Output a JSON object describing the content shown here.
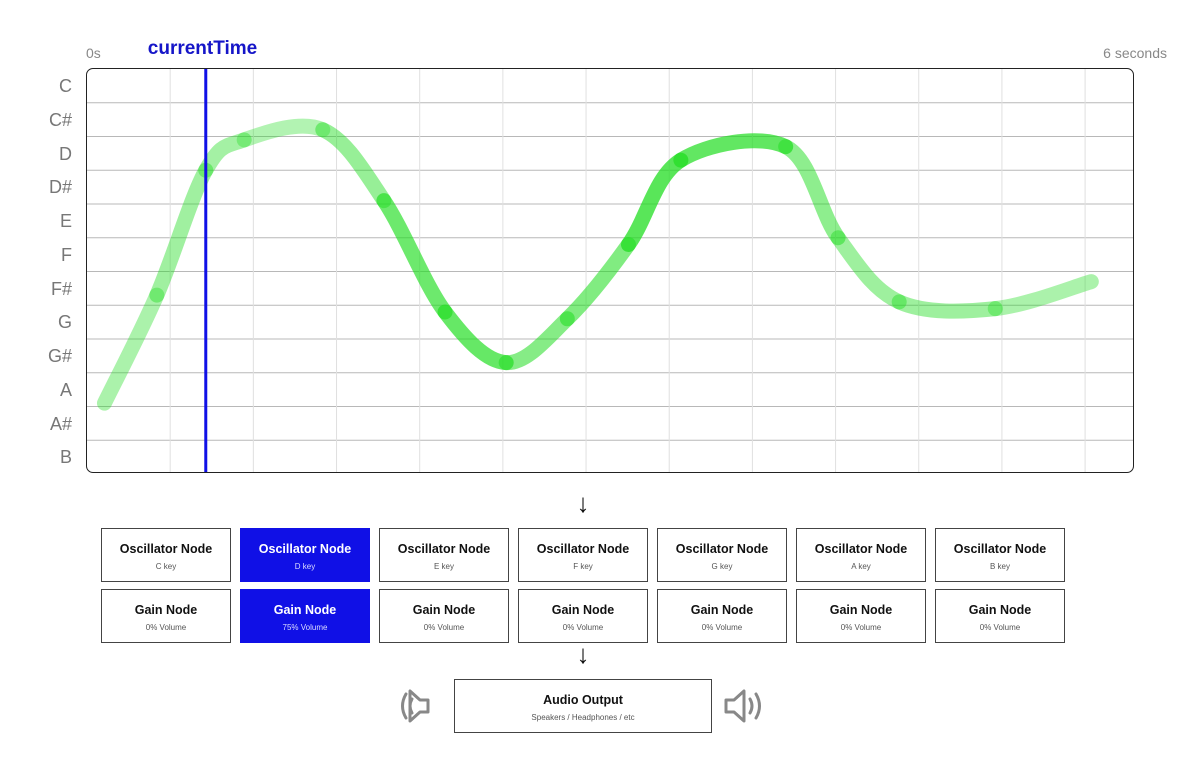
{
  "timeline": {
    "start_label": "0s",
    "end_label": "6 seconds",
    "current_time_label": "currentTime",
    "accent_color": "#1010e6",
    "curve_color": "#22dd22"
  },
  "notes": [
    "C",
    "C#",
    "D",
    "D#",
    "E",
    "F",
    "F#",
    "G",
    "G#",
    "A",
    "A#",
    "B"
  ],
  "chart_data": {
    "type": "line",
    "x_unit": "seconds",
    "x_range": [
      0,
      6
    ],
    "y_categories": [
      "C",
      "C#",
      "D",
      "D#",
      "E",
      "F",
      "F#",
      "G",
      "G#",
      "A",
      "A#",
      "B"
    ],
    "current_time": 0.68,
    "pitch_curve": [
      {
        "t": 0.1,
        "pitch": 9.4
      },
      {
        "t": 0.4,
        "pitch": 6.2
      },
      {
        "t": 0.68,
        "pitch": 2.5
      },
      {
        "t": 0.9,
        "pitch": 1.6
      },
      {
        "t": 1.35,
        "pitch": 1.3
      },
      {
        "t": 1.7,
        "pitch": 3.4
      },
      {
        "t": 2.05,
        "pitch": 6.7
      },
      {
        "t": 2.4,
        "pitch": 8.2
      },
      {
        "t": 2.75,
        "pitch": 6.9
      },
      {
        "t": 3.1,
        "pitch": 4.7
      },
      {
        "t": 3.4,
        "pitch": 2.2
      },
      {
        "t": 4.0,
        "pitch": 1.8
      },
      {
        "t": 4.3,
        "pitch": 4.5
      },
      {
        "t": 4.65,
        "pitch": 6.4
      },
      {
        "t": 5.2,
        "pitch": 6.6
      },
      {
        "t": 5.75,
        "pitch": 5.8
      }
    ],
    "intensity": [
      0.3,
      0.35,
      0.45,
      0.3,
      0.25,
      0.7,
      0.85,
      0.8,
      0.4,
      0.85,
      1.0,
      0.7,
      0.35,
      0.5,
      0.35,
      0.3
    ]
  },
  "oscillators": [
    {
      "title": "Oscillator Node",
      "sub": "C key",
      "active": false
    },
    {
      "title": "Oscillator Node",
      "sub": "D key",
      "active": true
    },
    {
      "title": "Oscillator Node",
      "sub": "E key",
      "active": false
    },
    {
      "title": "Oscillator Node",
      "sub": "F key",
      "active": false
    },
    {
      "title": "Oscillator Node",
      "sub": "G key",
      "active": false
    },
    {
      "title": "Oscillator Node",
      "sub": "A key",
      "active": false
    },
    {
      "title": "Oscillator Node",
      "sub": "B key",
      "active": false
    }
  ],
  "gains": [
    {
      "title": "Gain Node",
      "sub": "0% Volume",
      "active": false,
      "volume": 0
    },
    {
      "title": "Gain Node",
      "sub": "75% Volume",
      "active": true,
      "volume": 75
    },
    {
      "title": "Gain Node",
      "sub": "0% Volume",
      "active": false,
      "volume": 0
    },
    {
      "title": "Gain Node",
      "sub": "0% Volume",
      "active": false,
      "volume": 0
    },
    {
      "title": "Gain Node",
      "sub": "0% Volume",
      "active": false,
      "volume": 0
    },
    {
      "title": "Gain Node",
      "sub": "0% Volume",
      "active": false,
      "volume": 0
    },
    {
      "title": "Gain Node",
      "sub": "0% Volume",
      "active": false,
      "volume": 0
    }
  ],
  "output": {
    "title": "Audio Output",
    "sub": "Speakers / Headphones / etc",
    "left_icon": "speaker-muted-icon",
    "right_icon": "speaker-icon"
  },
  "arrows": {
    "down": "↓"
  }
}
